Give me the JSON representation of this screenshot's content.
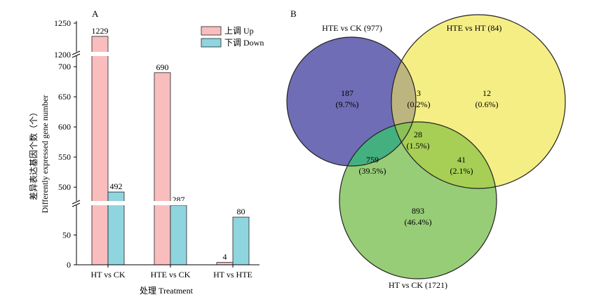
{
  "chart_data": [
    {
      "type": "bar",
      "panel_label": "A",
      "categories": [
        "HT vs CK",
        "HTE vs CK",
        "HT vs HTE"
      ],
      "series": [
        {
          "name": "上调 Up",
          "values": [
            1229,
            690,
            4
          ],
          "color": "#f9bdbd"
        },
        {
          "name": "下调 Down",
          "values": [
            492,
            287,
            80
          ],
          "color": "#8fd5df"
        }
      ],
      "xlabel": "处理 Treatment",
      "ylabel_cn": "差异表达基因个数（个）",
      "ylabel_en": "Differently expressed gene number",
      "y_axis_segments": [
        {
          "ylim": [
            0,
            100
          ],
          "ticks": [
            "0",
            "50"
          ]
        },
        {
          "ylim": [
            470,
            720
          ],
          "ticks": [
            "500",
            "550",
            "600",
            "650",
            "700"
          ]
        },
        {
          "ylim": [
            1200,
            1250
          ],
          "ticks": [
            "1200",
            "1250"
          ]
        }
      ],
      "axis_breaks": true,
      "legend_position": "top-right",
      "grid": false
    },
    {
      "type": "venn",
      "panel_label": "B",
      "sets": [
        {
          "name": "HTE vs CK (977)",
          "color": "#6f6db5"
        },
        {
          "name": "HTE vs HT (84)",
          "color": "#f5ee85"
        },
        {
          "name": "HT vs CK (1721)",
          "color": "#98cd78"
        }
      ],
      "regions": [
        {
          "sets": [
            "HTE vs CK (977)"
          ],
          "count": "187",
          "percent": "(9.7%)",
          "color": "#6f6db5"
        },
        {
          "sets": [
            "HTE vs CK (977)",
            "HTE vs HT (84)"
          ],
          "count": "3",
          "percent": "(0.2%)",
          "color": "#bdb57f"
        },
        {
          "sets": [
            "HTE vs HT (84)"
          ],
          "count": "12",
          "percent": "(0.6%)",
          "color": "#f5ee85"
        },
        {
          "sets": [
            "HTE vs CK (977)",
            "HTE vs HT (84)",
            "HT vs CK (1721)"
          ],
          "count": "28",
          "percent": "(1.5%)",
          "color": "#8cc158"
        },
        {
          "sets": [
            "HTE vs CK (977)",
            "HT vs CK (1721)"
          ],
          "count": "759",
          "percent": "(39.5%)",
          "color": "#45b07f"
        },
        {
          "sets": [
            "HTE vs HT (84)",
            "HT vs CK (1721)"
          ],
          "count": "41",
          "percent": "(2.1%)",
          "color": "#a7cf55"
        },
        {
          "sets": [
            "HT vs CK (1721)"
          ],
          "count": "893",
          "percent": "(46.4%)",
          "color": "#98cd78"
        }
      ]
    }
  ]
}
